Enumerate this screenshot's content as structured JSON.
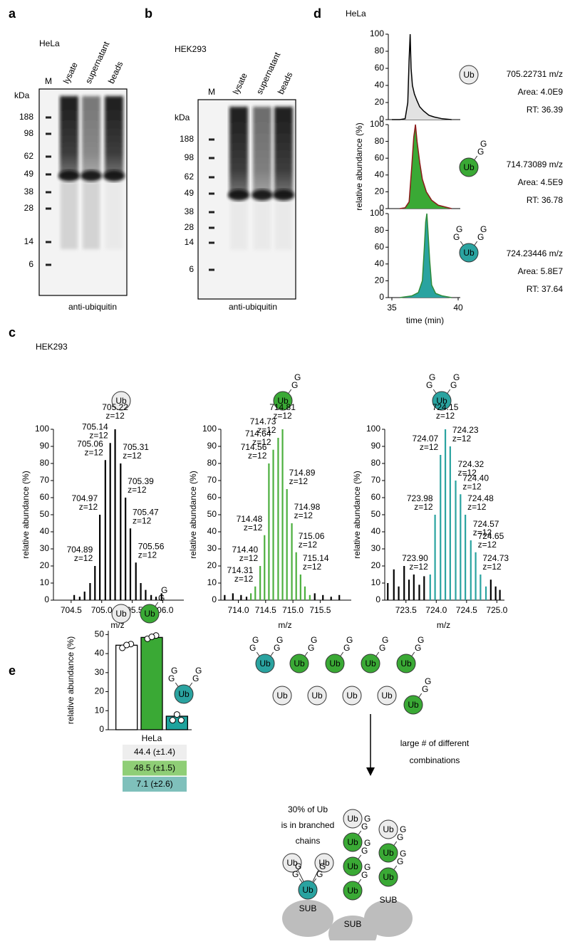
{
  "labels": {
    "ub": "Ub",
    "g": "G",
    "sub": "SUB"
  },
  "blots": [
    {
      "panel": "a",
      "cell_line": "HeLa",
      "lanes": [
        "M",
        "lysate",
        "supernatant",
        "beads"
      ],
      "unit": "kDa",
      "markers": [
        "188",
        "98",
        "62",
        "49",
        "38",
        "28",
        "14",
        "6"
      ],
      "antibody": "anti-ubiquitin"
    },
    {
      "panel": "b",
      "cell_line": "HEK293",
      "lanes": [
        "M",
        "lysate",
        "supernatant",
        "beads"
      ],
      "unit": "kDa",
      "markers": [
        "188",
        "98",
        "62",
        "49",
        "38",
        "28",
        "14",
        "6"
      ],
      "antibody": "anti-ubiquitin"
    }
  ],
  "chart_data": [
    {
      "type": "area",
      "panel": "d",
      "subtitle": "HeLa",
      "series": [
        {
          "color": "#000000",
          "fill": "#e2e2e2",
          "x": [
            35.0,
            35.6,
            36.0,
            36.2,
            36.3,
            36.38,
            36.45,
            36.55,
            36.7,
            36.9,
            37.1,
            37.4,
            37.8,
            38.2,
            38.8,
            39.5
          ],
          "values": [
            0,
            0,
            1,
            20,
            70,
            100,
            60,
            40,
            30,
            22,
            15,
            10,
            5,
            3,
            1,
            0
          ]
        }
      ],
      "xlim": [
        35,
        40
      ],
      "ylim": [
        0,
        100
      ],
      "yticks": [
        0,
        20,
        40,
        60,
        80,
        100
      ],
      "annotations": [
        "705.22731 m/z",
        "Area: 4.0E9",
        "RT: 36.39"
      ]
    },
    {
      "type": "area",
      "series": [
        {
          "color": "#8b1a1a",
          "fill": "#3aa935",
          "x": [
            35.6,
            36.0,
            36.3,
            36.5,
            36.65,
            36.78,
            36.9,
            37.1,
            37.3,
            37.6,
            38.0,
            38.5,
            39.0,
            39.5
          ],
          "values": [
            0,
            1,
            8,
            50,
            85,
            100,
            80,
            55,
            35,
            20,
            10,
            4,
            2,
            0
          ]
        }
      ],
      "xlim": [
        35,
        40
      ],
      "ylim": [
        0,
        100
      ],
      "yticks": [
        0,
        20,
        40,
        60,
        80,
        100
      ],
      "ylabel": "relative abundance (%)",
      "annotations": [
        "714.73089 m/z",
        "Area: 4.5E9",
        "RT: 36.78"
      ]
    },
    {
      "type": "area",
      "series": [
        {
          "color": "#2e8b3a",
          "fill": "#2aa3a0",
          "x": [
            35.6,
            36.5,
            37.0,
            37.3,
            37.45,
            37.55,
            37.64,
            37.72,
            37.85,
            38.0,
            38.3,
            38.8,
            39.5
          ],
          "values": [
            0,
            2,
            6,
            20,
            60,
            90,
            100,
            80,
            45,
            15,
            5,
            2,
            0
          ]
        }
      ],
      "xlim": [
        35,
        40
      ],
      "ylim": [
        0,
        100
      ],
      "yticks": [
        0,
        20,
        40,
        60,
        80,
        100
      ],
      "xticks": [
        35,
        40
      ],
      "xlabel": "time (min)",
      "annotations": [
        "724.23446 m/z",
        "Area: 5.8E7",
        "RT: 37.64"
      ]
    },
    {
      "type": "spectrum",
      "panel": "c",
      "subtitle": "HEK293",
      "series": [
        {
          "color": "#000000",
          "x": [
            704.55,
            704.64,
            704.72,
            704.81,
            704.89,
            704.97,
            705.06,
            705.14,
            705.22,
            705.31,
            705.39,
            705.47,
            705.56,
            705.64,
            705.72,
            705.81,
            705.89,
            705.98
          ],
          "values": [
            3,
            2,
            5,
            10,
            20,
            50,
            82,
            92,
            100,
            80,
            60,
            42,
            22,
            10,
            6,
            3,
            2,
            4
          ],
          "mz_labels": [
            null,
            null,
            null,
            null,
            "704.89",
            "704.97",
            "705.06",
            "705.14",
            "705.22",
            "705.31",
            "705.39",
            "705.47",
            "705.56",
            null,
            null,
            null,
            null,
            null
          ],
          "z_labels": [
            null,
            null,
            null,
            null,
            "z=12",
            "z=12",
            "z=12",
            "z=12",
            "z=12",
            "z=12",
            "z=12",
            "z=12",
            "z=12",
            null,
            null,
            null,
            null,
            null
          ]
        }
      ],
      "xlim": [
        704.21,
        706.31
      ],
      "xticks": [
        704.5,
        {
          "value": 705,
          "label": "705.0"
        },
        705.5,
        {
          "value": 706,
          "label": "706.0"
        }
      ],
      "ylim": [
        0,
        100
      ],
      "yticks": [
        0,
        10,
        20,
        30,
        40,
        50,
        60,
        70,
        80,
        90,
        100
      ],
      "xlabel": "m/z",
      "ylabel": "relative abundance (%)"
    },
    {
      "type": "spectrum",
      "series": [
        {
          "color": "#000000",
          "x": [
            713.75,
            713.9,
            714.05,
            714.15,
            715.4,
            715.55,
            715.7,
            715.85
          ],
          "values": [
            3,
            4,
            3,
            2,
            4,
            3,
            2,
            3
          ],
          "mz_labels": [
            null,
            null,
            null,
            null,
            null,
            null,
            null,
            null
          ],
          "z_labels": [
            null,
            null,
            null,
            null,
            null,
            null,
            null,
            null
          ]
        },
        {
          "color": "#4caf3e",
          "x": [
            714.23,
            714.31,
            714.4,
            714.48,
            714.56,
            714.64,
            714.73,
            714.81,
            714.89,
            714.98,
            715.06,
            715.14,
            715.22,
            715.31
          ],
          "values": [
            4,
            8,
            20,
            38,
            80,
            88,
            95,
            100,
            65,
            45,
            28,
            15,
            8,
            3
          ],
          "mz_labels": [
            null,
            "714.31",
            "714.40",
            "714.48",
            "714.56",
            "714.64",
            "714.73",
            "714.81",
            "714.89",
            "714.98",
            "715.06",
            "715.14",
            null,
            null
          ],
          "z_labels": [
            null,
            "z=12",
            "z=12",
            "z=12",
            "z=12",
            "z=12",
            "z=12",
            "z=12",
            "z=12",
            "z=12",
            "z=12",
            "z=12",
            null,
            null
          ]
        }
      ],
      "xlim": [
        713.68,
        716.03
      ],
      "xticks": [
        {
          "value": 714,
          "label": "714.0"
        },
        714.5,
        {
          "value": 715,
          "label": "715.0"
        },
        715.5
      ],
      "ylim": [
        0,
        100
      ],
      "yticks": [
        0,
        10,
        20,
        30,
        40,
        50,
        60,
        70,
        80,
        90,
        100
      ],
      "xlabel": "m/z",
      "ylabel": "relative abundance (%)"
    },
    {
      "type": "spectrum",
      "series": [
        {
          "color": "#000000",
          "x": [
            723.2,
            723.3,
            723.38,
            723.47,
            723.55,
            723.63,
            723.72,
            723.8,
            724.9,
            724.98,
            725.05
          ],
          "values": [
            10,
            18,
            8,
            20,
            12,
            15,
            9,
            14,
            12,
            8,
            6
          ],
          "mz_labels": [
            null,
            null,
            null,
            null,
            null,
            null,
            null,
            null,
            null,
            null,
            null
          ],
          "z_labels": [
            null,
            null,
            null,
            null,
            null,
            null,
            null,
            null,
            null,
            null,
            null
          ]
        },
        {
          "color": "#2aa3a0",
          "x": [
            723.9,
            723.98,
            724.07,
            724.15,
            724.23,
            724.32,
            724.4,
            724.48,
            724.57,
            724.65,
            724.73,
            724.82
          ],
          "values": [
            15,
            50,
            85,
            100,
            90,
            70,
            62,
            50,
            35,
            28,
            15,
            8
          ],
          "mz_labels": [
            "723.90",
            "723.98",
            "724.07",
            "724.15",
            "724.23",
            "724.32",
            "724.40",
            "724.48",
            "724.57",
            "724.65",
            "724.73",
            null
          ],
          "z_labels": [
            "z=12",
            "z=12",
            "z=12",
            "z=12",
            "z=12",
            "z=12",
            "z=12",
            "z=12",
            "z=12",
            "z=12",
            "z=12",
            null
          ]
        }
      ],
      "xlim": [
        723.15,
        725.09
      ],
      "xticks": [
        723.5,
        {
          "value": 724,
          "label": "724.0"
        },
        724.5,
        {
          "value": 725,
          "label": "725.0"
        }
      ],
      "ylim": [
        0,
        100
      ],
      "yticks": [
        0,
        10,
        20,
        30,
        40,
        50,
        60,
        70,
        80,
        90,
        100
      ],
      "xlabel": "m/z",
      "ylabel": "relative abundance (%)"
    },
    {
      "type": "bar",
      "panel": "e",
      "categories": [
        null,
        null,
        null
      ],
      "values": [
        44.4,
        48.5,
        7.1
      ],
      "value_labels": [
        "44.4 (±1.4)",
        "48.5 (±1.5)",
        "7.1 (±2.6)"
      ],
      "points": [
        [
          43,
          45,
          44.5
        ],
        [
          47.8,
          49.5,
          48.8
        ],
        [
          5,
          5,
          8
        ]
      ],
      "colors": [
        "#ffffff",
        "#3aa935",
        "#1fa39d"
      ],
      "label_colors": [
        "#eeeeee",
        "#8fce76",
        "#7fc0bb"
      ],
      "ylim": [
        0,
        52
      ],
      "yticks": [
        0,
        10,
        20,
        30,
        40,
        50
      ],
      "ylabel": "relative abundance (%)",
      "xlabel": "HeLa"
    }
  ],
  "diagram": {
    "arrow_text": [
      "large # of different",
      "combinations"
    ],
    "branched_text": [
      "30% of Ub",
      "is in branched",
      "chains"
    ]
  }
}
